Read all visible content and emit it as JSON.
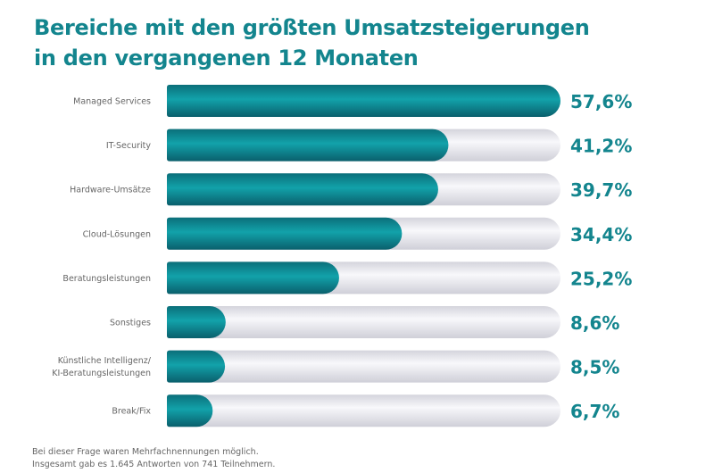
{
  "chart_data": {
    "type": "bar",
    "orientation": "horizontal",
    "title_lines": [
      "Bereiche mit den größten Umsatzsteigerungen",
      "in den vergangenen 12 Monaten"
    ],
    "categories": [
      [
        "Managed Services"
      ],
      [
        "IT-Security"
      ],
      [
        "Hardware-Umsätze"
      ],
      [
        "Cloud-Lösungen"
      ],
      [
        "Beratungsleistungen"
      ],
      [
        "Sonstiges"
      ],
      [
        "Künstliche Intelligenz/",
        "KI-Beratungsleistungen"
      ],
      [
        "Break/Fix"
      ]
    ],
    "values": [
      57.6,
      41.2,
      39.7,
      34.4,
      25.2,
      8.6,
      8.5,
      6.7
    ],
    "value_labels": [
      "57,6%",
      "41,2%",
      "39,7%",
      "34,4%",
      "25,2%",
      "8,6%",
      "8,5%",
      "6,7%"
    ],
    "xlim": [
      0,
      57.6
    ],
    "grid": false,
    "colors": {
      "bar": "#0f8a93",
      "track": "#e4e4ea",
      "label": "#13858e"
    }
  },
  "footnote": [
    "Bei dieser Frage waren Mehrfachnennungen möglich.",
    "Insgesamt gab es 1.645 Antworten von 741 Teilnehmern."
  ]
}
